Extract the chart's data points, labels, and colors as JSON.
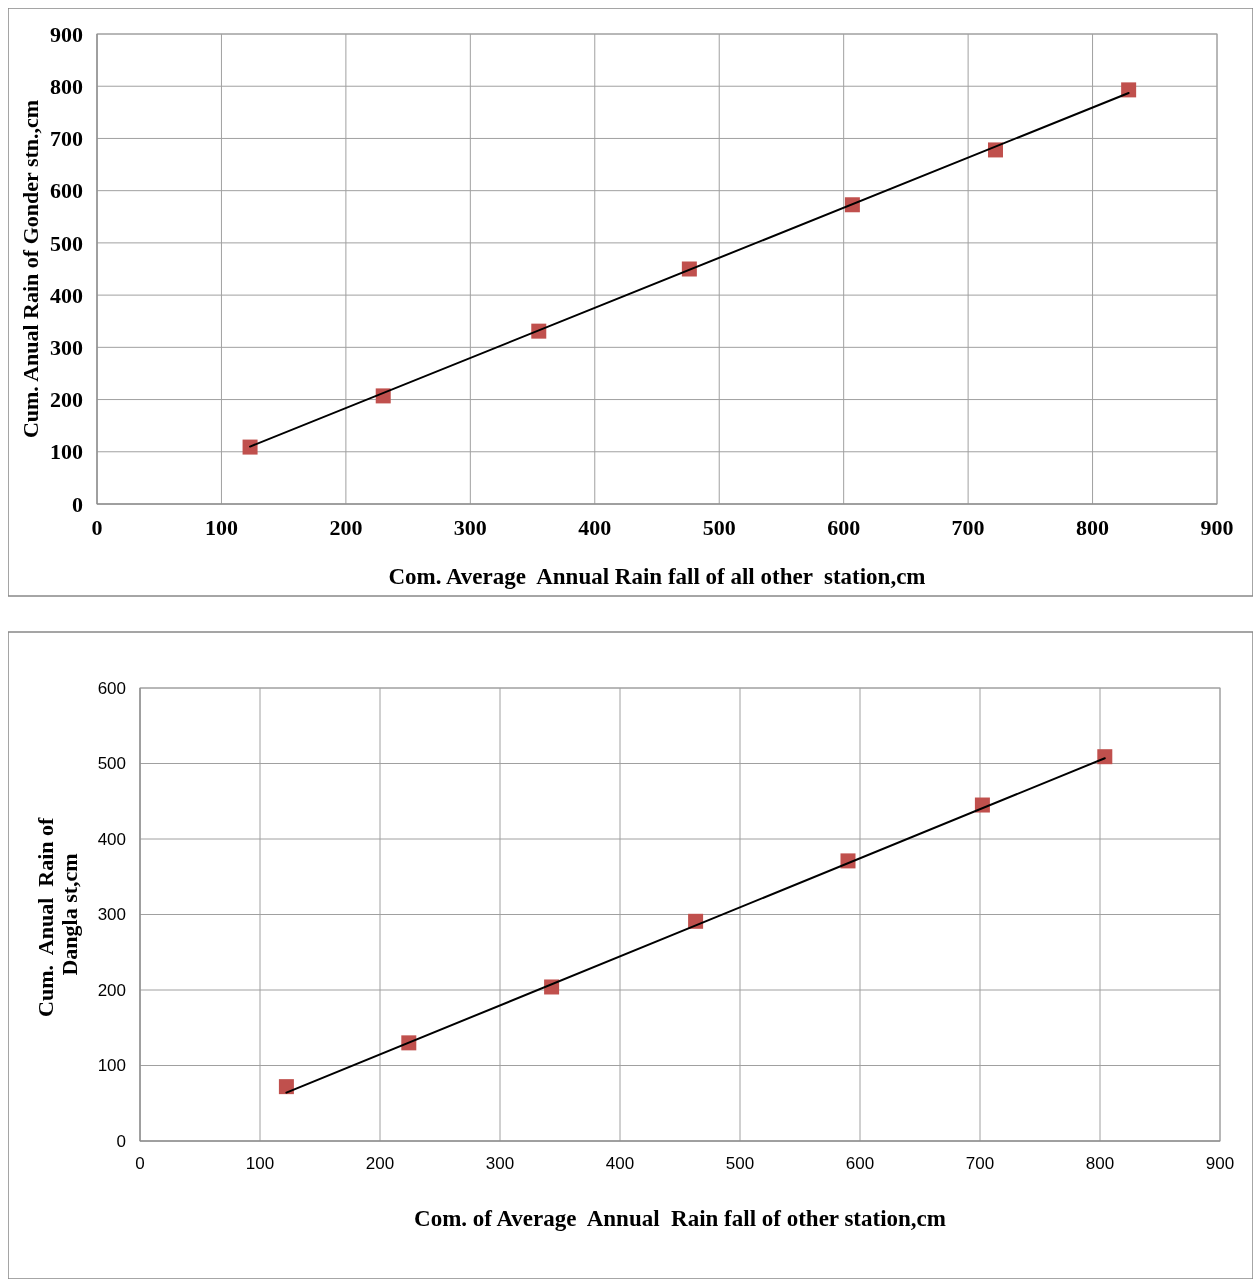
{
  "chart_data": [
    {
      "type": "scatter",
      "xlabel": "Com. Average  Annual Rain fall of all other  station,cm",
      "ylabel": "Cum. Anual Rain of Gonder stn.,cm",
      "xlim": [
        0,
        900
      ],
      "xticks": [
        0,
        100,
        200,
        300,
        400,
        500,
        600,
        700,
        800,
        900
      ],
      "ylim": [
        0,
        900
      ],
      "yticks": [
        0,
        100,
        200,
        300,
        400,
        500,
        600,
        700,
        800,
        900
      ],
      "grid": true,
      "series": [
        {
          "color": "#c0504d",
          "marker": "square",
          "x": [
            123,
            230,
            355,
            476,
            607,
            722,
            829
          ],
          "values": [
            109,
            207,
            331,
            450,
            573,
            678,
            793
          ]
        },
        {
          "type": "line",
          "color": "#000000",
          "x": [
            123,
            829
          ],
          "values": [
            110,
            787
          ]
        }
      ]
    },
    {
      "type": "scatter",
      "xlabel": "Com. of Average  Annual  Rain fall of other station,cm",
      "ylabel": "Cum.  Anual  Rain of  Dangla st,cm",
      "xlim": [
        0,
        900
      ],
      "xticks": [
        0,
        100,
        200,
        300,
        400,
        500,
        600,
        700,
        800,
        900
      ],
      "ylim": [
        0,
        600
      ],
      "yticks": [
        0,
        100,
        200,
        300,
        400,
        500,
        600
      ],
      "grid": true,
      "series": [
        {
          "color": "#c0504d",
          "marker": "square",
          "x": [
            122,
            224,
            343,
            463,
            590,
            702,
            804
          ],
          "values": [
            72,
            130,
            204,
            291,
            371,
            445,
            509
          ]
        },
        {
          "type": "line",
          "color": "#000000",
          "x": [
            122,
            804
          ],
          "values": [
            64,
            507
          ]
        }
      ]
    }
  ]
}
